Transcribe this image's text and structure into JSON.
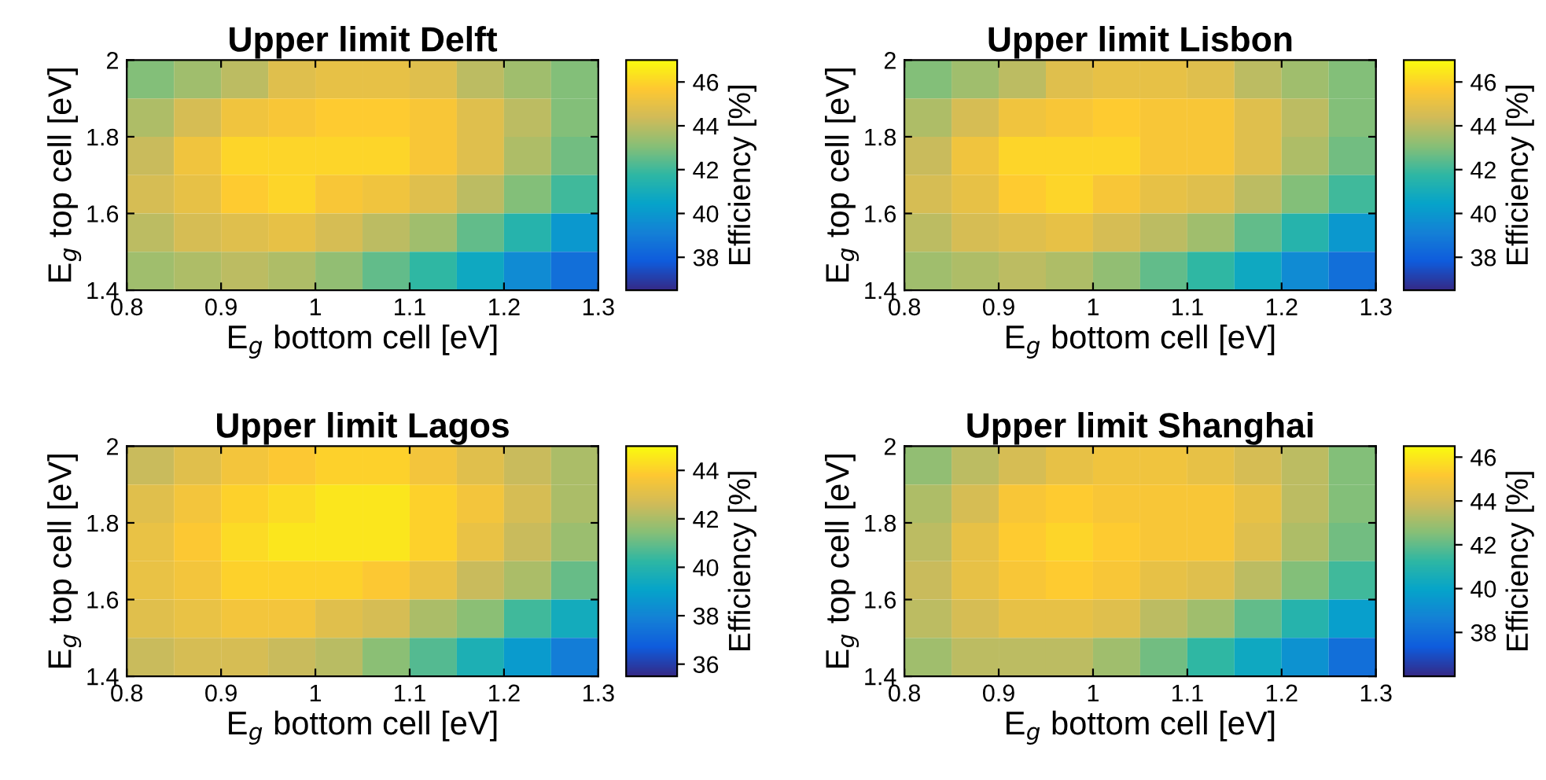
{
  "chart_data": [
    {
      "type": "heatmap",
      "title": "Upper limit Delft",
      "xlabel": "E$_{g}$ bottom cell [eV]",
      "ylabel": "E$_{g}$ top cell [eV]",
      "clabel": "Efficiency [%]",
      "x": [
        0.825,
        0.875,
        0.925,
        0.975,
        1.025,
        1.075,
        1.125,
        1.175,
        1.225,
        1.275
      ],
      "y": [
        1.95,
        1.85,
        1.75,
        1.65,
        1.55,
        1.45
      ],
      "cells": [
        [
          43.0,
          43.5,
          44.0,
          44.75,
          45.0,
          45.0,
          44.75,
          44.0,
          43.5,
          43.0
        ],
        [
          43.75,
          44.5,
          45.25,
          45.5,
          45.75,
          45.75,
          45.5,
          44.75,
          44.0,
          43.0
        ],
        [
          44.25,
          45.25,
          46.0,
          46.0,
          46.0,
          46.0,
          45.5,
          44.75,
          43.75,
          42.75
        ],
        [
          44.5,
          45.0,
          45.75,
          46.0,
          45.5,
          45.25,
          44.75,
          44.0,
          43.0,
          42.0
        ],
        [
          44.0,
          44.5,
          44.75,
          45.0,
          44.5,
          44.0,
          43.5,
          42.5,
          41.5,
          40.0
        ],
        [
          43.5,
          43.75,
          44.0,
          43.75,
          43.25,
          42.5,
          41.75,
          40.75,
          39.5,
          38.5
        ]
      ],
      "xlim": [
        0.8,
        1.3
      ],
      "xticks": [
        0.8,
        0.9,
        1,
        1.1,
        1.2,
        1.3
      ],
      "ylim": [
        1.4,
        2
      ],
      "yticks": [
        1.4,
        1.6,
        1.8,
        2
      ],
      "clim": [
        36.5,
        47
      ],
      "cticks": [
        38,
        40,
        42,
        44,
        46
      ]
    },
    {
      "type": "heatmap",
      "title": "Upper limit Lisbon",
      "xlabel": "E$_{g}$ bottom cell [eV]",
      "ylabel": "E$_{g}$ top cell [eV]",
      "clabel": "Efficiency [%]",
      "x": [
        0.825,
        0.875,
        0.925,
        0.975,
        1.025,
        1.075,
        1.125,
        1.175,
        1.225,
        1.275
      ],
      "y": [
        1.95,
        1.85,
        1.75,
        1.65,
        1.55,
        1.45
      ],
      "cells": [
        [
          43.0,
          43.5,
          44.0,
          44.75,
          45.0,
          45.0,
          44.75,
          44.0,
          43.5,
          43.0
        ],
        [
          43.75,
          44.5,
          45.25,
          45.5,
          45.75,
          45.5,
          45.5,
          44.75,
          44.0,
          43.0
        ],
        [
          44.25,
          45.25,
          46.0,
          46.0,
          46.0,
          45.5,
          45.5,
          44.75,
          43.75,
          42.75
        ],
        [
          44.5,
          45.0,
          45.75,
          46.0,
          45.5,
          45.0,
          44.75,
          44.0,
          43.0,
          42.0
        ],
        [
          44.0,
          44.5,
          44.75,
          45.0,
          44.5,
          44.0,
          43.5,
          42.5,
          41.5,
          40.0
        ],
        [
          43.5,
          43.75,
          44.0,
          43.75,
          43.25,
          42.5,
          41.75,
          40.75,
          39.5,
          38.5
        ]
      ],
      "xlim": [
        0.8,
        1.3
      ],
      "xticks": [
        0.8,
        0.9,
        1,
        1.1,
        1.2,
        1.3
      ],
      "ylim": [
        1.4,
        2
      ],
      "yticks": [
        1.4,
        1.6,
        1.8,
        2
      ],
      "clim": [
        36.5,
        47
      ],
      "cticks": [
        38,
        40,
        42,
        44,
        46
      ]
    },
    {
      "type": "heatmap",
      "title": "Upper limit Lagos",
      "xlabel": "E$_{g}$ bottom cell [eV]",
      "ylabel": "E$_{g}$ top cell [eV]",
      "clabel": "Efficiency [%]",
      "x": [
        0.825,
        0.875,
        0.925,
        0.975,
        1.025,
        1.075,
        1.125,
        1.175,
        1.225,
        1.275
      ],
      "y": [
        1.95,
        1.85,
        1.75,
        1.65,
        1.55,
        1.45
      ],
      "cells": [
        [
          42.5,
          43.0,
          43.5,
          43.75,
          44.0,
          44.0,
          43.5,
          43.0,
          42.5,
          42.0
        ],
        [
          43.0,
          43.5,
          44.0,
          44.25,
          44.5,
          44.5,
          44.0,
          43.5,
          42.75,
          42.0
        ],
        [
          43.25,
          43.75,
          44.25,
          44.5,
          44.5,
          44.5,
          44.0,
          43.25,
          42.5,
          41.75
        ],
        [
          43.25,
          43.5,
          44.0,
          44.0,
          44.0,
          43.75,
          43.25,
          42.5,
          42.0,
          41.0
        ],
        [
          43.0,
          43.25,
          43.5,
          43.5,
          43.0,
          42.75,
          42.0,
          41.5,
          40.5,
          39.5
        ],
        [
          42.5,
          42.75,
          42.75,
          42.5,
          42.25,
          41.5,
          40.75,
          39.75,
          38.75,
          37.75
        ]
      ],
      "xlim": [
        0.8,
        1.3
      ],
      "xticks": [
        0.8,
        0.9,
        1,
        1.1,
        1.2,
        1.3
      ],
      "ylim": [
        1.4,
        2
      ],
      "yticks": [
        1.4,
        1.6,
        1.8,
        2
      ],
      "clim": [
        35.5,
        45
      ],
      "cticks": [
        36,
        38,
        40,
        42,
        44
      ]
    },
    {
      "type": "heatmap",
      "title": "Upper limit Shanghai",
      "xlabel": "E$_{g}$ bottom cell [eV]",
      "ylabel": "E$_{g}$ top cell [eV]",
      "clabel": "Efficiency [%]",
      "x": [
        0.825,
        0.875,
        0.925,
        0.975,
        1.025,
        1.075,
        1.125,
        1.175,
        1.225,
        1.275
      ],
      "y": [
        1.95,
        1.85,
        1.75,
        1.65,
        1.55,
        1.45
      ],
      "cells": [
        [
          42.75,
          43.5,
          44.0,
          44.5,
          44.75,
          44.75,
          44.5,
          44.0,
          43.5,
          42.5
        ],
        [
          43.25,
          44.0,
          45.0,
          45.25,
          45.0,
          45.0,
          45.0,
          44.5,
          43.5,
          42.5
        ],
        [
          43.5,
          44.5,
          45.25,
          45.5,
          45.25,
          45.0,
          45.0,
          44.25,
          43.25,
          42.25
        ],
        [
          43.75,
          44.5,
          45.0,
          45.25,
          45.0,
          44.5,
          44.25,
          43.5,
          42.5,
          41.5
        ],
        [
          43.5,
          44.0,
          44.5,
          44.5,
          44.25,
          43.5,
          43.0,
          42.0,
          41.0,
          39.75
        ],
        [
          43.0,
          43.5,
          43.5,
          43.5,
          43.0,
          42.25,
          41.25,
          40.25,
          39.25,
          38.0
        ]
      ],
      "xlim": [
        0.8,
        1.3
      ],
      "xticks": [
        0.8,
        0.9,
        1,
        1.1,
        1.2,
        1.3
      ],
      "ylim": [
        1.4,
        2
      ],
      "yticks": [
        1.4,
        1.6,
        1.8,
        2
      ],
      "clim": [
        36,
        46.5
      ],
      "cticks": [
        38,
        40,
        42,
        44,
        46
      ]
    }
  ]
}
